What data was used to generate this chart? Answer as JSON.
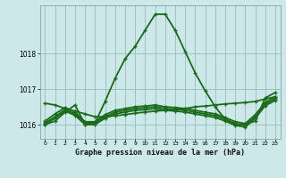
{
  "background_color": "#cce8e8",
  "grid_color": "#99bbbb",
  "line_color": "#1a6b1a",
  "title": "Graphe pression niveau de la mer (hPa)",
  "xlim": [
    -0.5,
    23.5
  ],
  "ylim": [
    1015.6,
    1019.35
  ],
  "yticks": [
    1016,
    1017,
    1018
  ],
  "xticks": [
    0,
    1,
    2,
    3,
    4,
    5,
    6,
    7,
    8,
    9,
    10,
    11,
    12,
    13,
    14,
    15,
    16,
    17,
    18,
    19,
    20,
    21,
    22,
    23
  ],
  "hours": [
    0,
    1,
    2,
    3,
    4,
    5,
    6,
    7,
    8,
    9,
    10,
    11,
    12,
    13,
    14,
    15,
    16,
    17,
    18,
    19,
    20,
    21,
    22,
    23
  ],
  "series": [
    [
      1016.0,
      1016.1,
      1016.35,
      1016.55,
      1016.0,
      1016.05,
      1016.65,
      1017.3,
      1017.85,
      1018.2,
      1018.65,
      1019.1,
      1019.1,
      1018.65,
      1018.05,
      1017.45,
      1016.95,
      1016.5,
      1016.15,
      1016.0,
      1016.0,
      1016.1,
      1016.75,
      1016.9
    ],
    [
      1016.6,
      1016.55,
      1016.45,
      1016.38,
      1016.3,
      1016.22,
      1016.22,
      1016.25,
      1016.28,
      1016.32,
      1016.35,
      1016.38,
      1016.4,
      1016.42,
      1016.45,
      1016.5,
      1016.52,
      1016.55,
      1016.58,
      1016.6,
      1016.62,
      1016.65,
      1016.72,
      1016.78
    ],
    [
      1016.1,
      1016.3,
      1016.48,
      1016.35,
      1016.08,
      1016.08,
      1016.28,
      1016.4,
      1016.45,
      1016.5,
      1016.52,
      1016.55,
      1016.5,
      1016.48,
      1016.45,
      1016.4,
      1016.35,
      1016.3,
      1016.2,
      1016.08,
      1016.03,
      1016.28,
      1016.62,
      1016.78
    ],
    [
      1016.05,
      1016.22,
      1016.42,
      1016.3,
      1016.05,
      1016.05,
      1016.22,
      1016.35,
      1016.4,
      1016.45,
      1016.47,
      1016.5,
      1016.45,
      1016.43,
      1016.4,
      1016.35,
      1016.3,
      1016.25,
      1016.15,
      1016.03,
      1015.98,
      1016.22,
      1016.58,
      1016.72
    ],
    [
      1016.0,
      1016.18,
      1016.38,
      1016.26,
      1016.0,
      1016.0,
      1016.18,
      1016.3,
      1016.35,
      1016.4,
      1016.42,
      1016.45,
      1016.4,
      1016.38,
      1016.35,
      1016.3,
      1016.25,
      1016.2,
      1016.1,
      1015.98,
      1015.93,
      1016.18,
      1016.53,
      1016.68
    ]
  ]
}
